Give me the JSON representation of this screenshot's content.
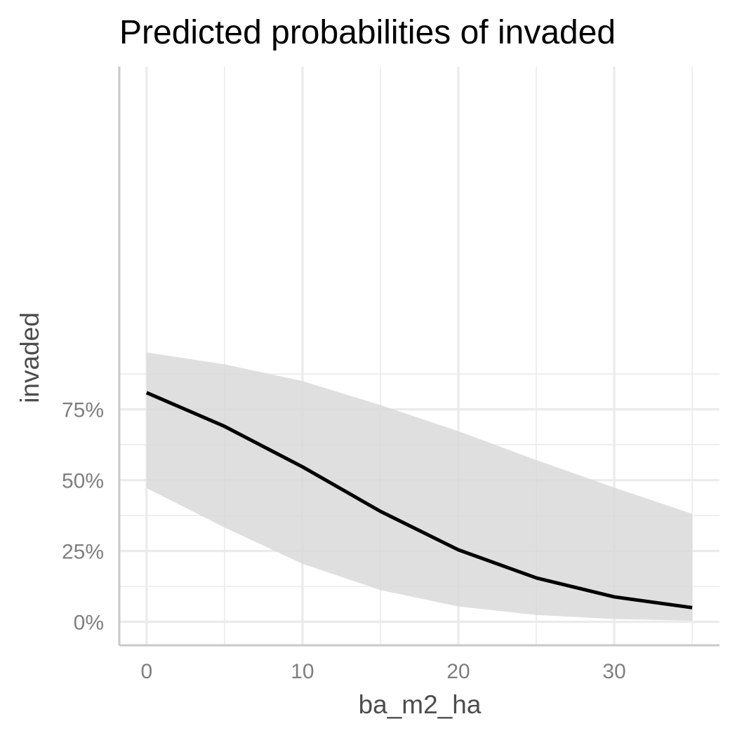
{
  "chart_data": {
    "type": "line",
    "title": "Predicted probabilities of invaded",
    "xlabel": "ba_m2_ha",
    "ylabel": "invaded",
    "xlim": [
      -1.75,
      36.75
    ],
    "ylim": [
      -0.083,
      1.96
    ],
    "x_ticks": [
      0,
      10,
      20,
      30
    ],
    "x_minor_ticks": [
      5,
      15,
      25,
      35
    ],
    "y_ticks": [
      0,
      0.25,
      0.5,
      0.75
    ],
    "y_tick_labels": [
      "0%",
      "25%",
      "50%",
      "75%"
    ],
    "y_minor_ticks": [
      0.125,
      0.375,
      0.625,
      0.875
    ],
    "grid": true,
    "legend": "none",
    "series": [
      {
        "x": [
          0,
          5,
          10,
          15,
          20,
          25,
          30,
          35
        ],
        "y": [
          0.809,
          0.69,
          0.547,
          0.39,
          0.254,
          0.155,
          0.088,
          0.05
        ],
        "ci_low": [
          0.472,
          0.333,
          0.205,
          0.112,
          0.054,
          0.024,
          0.01,
          0.004
        ],
        "ci_high": [
          0.951,
          0.909,
          0.85,
          0.765,
          0.673,
          0.571,
          0.474,
          0.381
        ],
        "color": "#000000",
        "band_color": "#d9d9d9"
      }
    ]
  }
}
